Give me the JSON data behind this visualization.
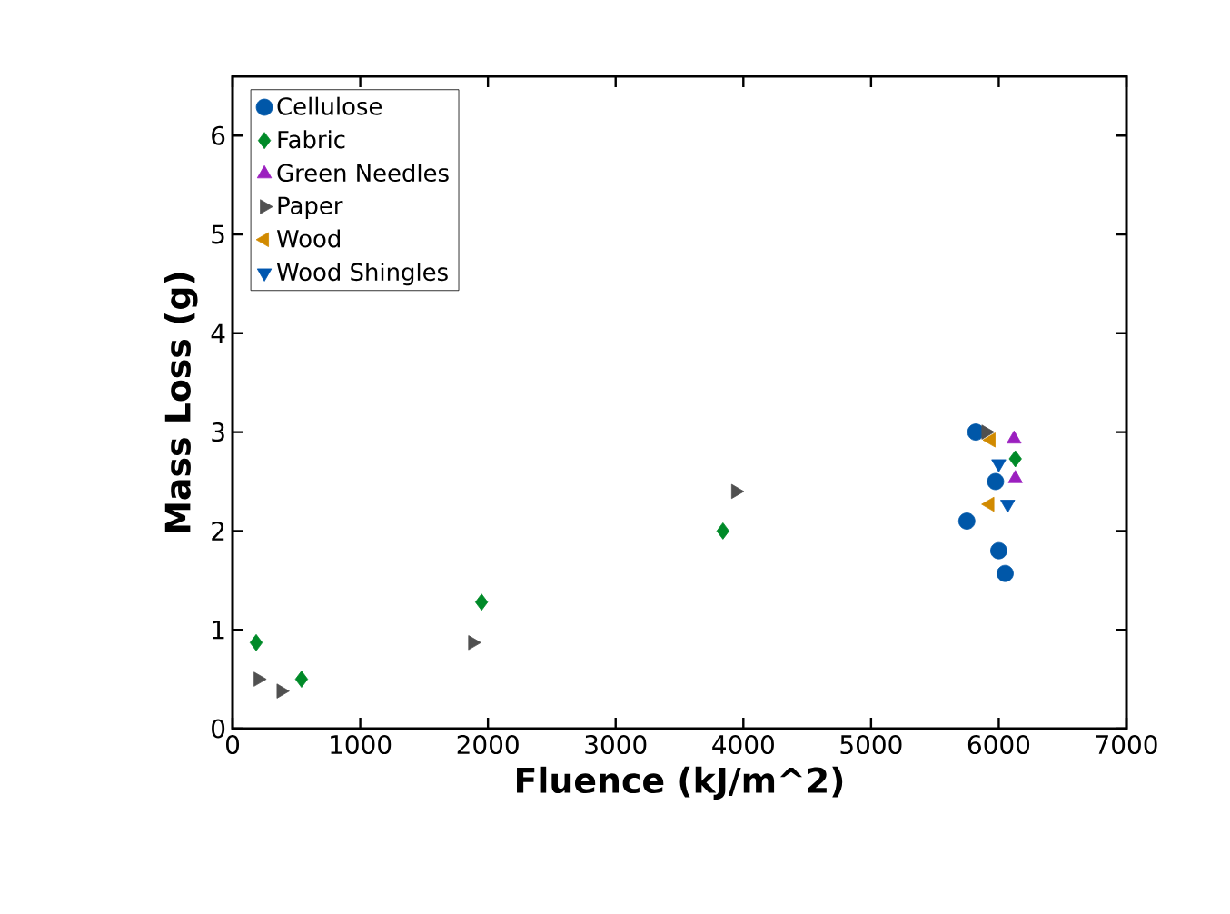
{
  "chart_data": {
    "type": "scatter",
    "xlabel": "Fluence (kJ/m^2)",
    "ylabel": "Mass Loss (g)",
    "xlim": [
      0,
      7000
    ],
    "ylim": [
      0,
      6.6
    ],
    "xticks": [
      0,
      1000,
      2000,
      3000,
      4000,
      5000,
      6000,
      7000
    ],
    "yticks": [
      0,
      1,
      2,
      3,
      4,
      5,
      6
    ],
    "grid": false,
    "legend": "top left",
    "series": [
      {
        "name": "Cellulose",
        "color": "#0057a8",
        "marker": "circle",
        "x": [
          5820,
          5975,
          5750,
          6000,
          6050
        ],
        "values": [
          3.0,
          2.5,
          2.1,
          1.8,
          1.57
        ]
      },
      {
        "name": "Fabric",
        "color": "#008a28",
        "marker": "diamond",
        "x": [
          185,
          540,
          1950,
          3840,
          6130
        ],
        "values": [
          0.87,
          0.5,
          1.28,
          2.0,
          2.73
        ]
      },
      {
        "name": "Green Needles",
        "color": "#9b1fbf",
        "marker": "triangle",
        "x": [
          6120,
          6130
        ],
        "values": [
          2.93,
          2.53
        ]
      },
      {
        "name": "Paper",
        "color": "#505050",
        "marker": "triangle-right",
        "x": [
          5900,
          200,
          380,
          1880,
          3940
        ],
        "values": [
          3.0,
          0.5,
          0.38,
          0.87,
          2.4
        ]
      },
      {
        "name": "Wood",
        "color": "#d18a00",
        "marker": "triangle-left",
        "x": [
          5940,
          5930
        ],
        "values": [
          2.92,
          2.27
        ]
      },
      {
        "name": "Wood Shingles",
        "color": "#0057b0",
        "marker": "triangle-down",
        "x": [
          6000,
          6070
        ],
        "values": [
          2.68,
          2.27
        ]
      }
    ]
  }
}
